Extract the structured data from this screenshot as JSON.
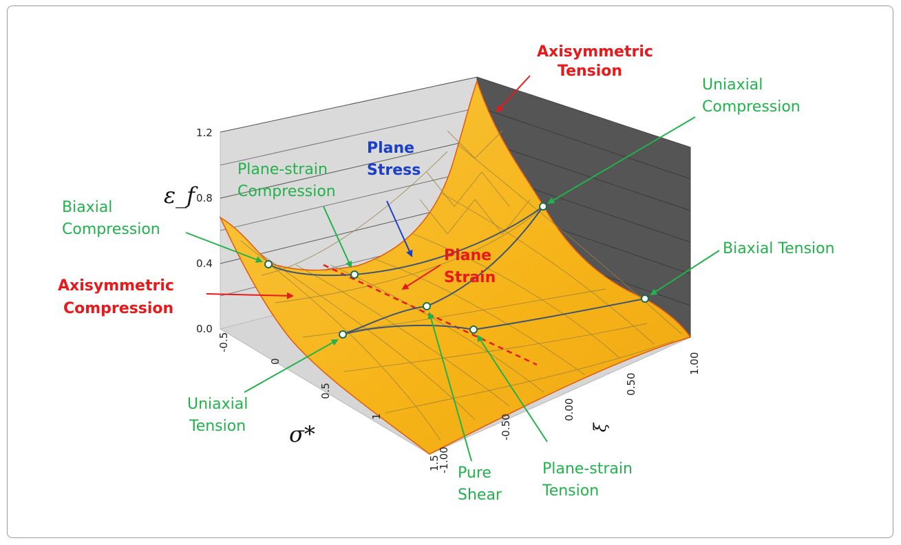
{
  "chart_data": {
    "type": "surface",
    "zlabel": "ε_f",
    "xlabel": "σ*",
    "ylabel": "ξ",
    "z_ticks": [
      "0.0",
      "0.4",
      "0.8",
      "1.2"
    ],
    "z_range": [
      0.0,
      1.2
    ],
    "x_ticks": [
      "-0.5",
      "0",
      "0.5",
      "1",
      "1.5"
    ],
    "x_range": [
      -0.5,
      1.5
    ],
    "y_ticks": [
      "-1.00",
      "-0.50",
      "0.00",
      "0.50",
      "1.00"
    ],
    "y_range": [
      -1.0,
      1.0
    ],
    "annotations": {
      "axisymmetric_tension": [
        "Axisymmetric",
        "Tension"
      ],
      "uniaxial_compression": [
        "Uniaxial",
        "Compression"
      ],
      "plane_stress": [
        "Plane",
        "Stress"
      ],
      "plane_strain_compression": [
        "Plane-strain",
        "Compression"
      ],
      "biaxial_compression": [
        "Biaxial",
        "Compression"
      ],
      "plane_strain": [
        "Plane",
        "Strain"
      ],
      "biaxial_tension": "Biaxial Tension",
      "axisymmetric_compression": [
        "Axisymmetric",
        "Compression"
      ],
      "uniaxial_tension": [
        "Uniaxial",
        "Tension"
      ],
      "pure_shear": [
        "Pure",
        "Shear"
      ],
      "plane_strain_tension": [
        "Plane-strain",
        "Tension"
      ]
    },
    "colors": {
      "surface": "#f7b81c",
      "surface_grid": "#8a7a40",
      "back_wall_left": "#d8d8d8",
      "back_wall_right": "#555555",
      "floor": "#d6d6d6",
      "plane_stress_curve": "#3d5570",
      "edge_line": "#e8191b",
      "annotation_green": "#21b24b",
      "annotation_red": "#e8191b",
      "annotation_blue": "#1c3fc9"
    }
  }
}
